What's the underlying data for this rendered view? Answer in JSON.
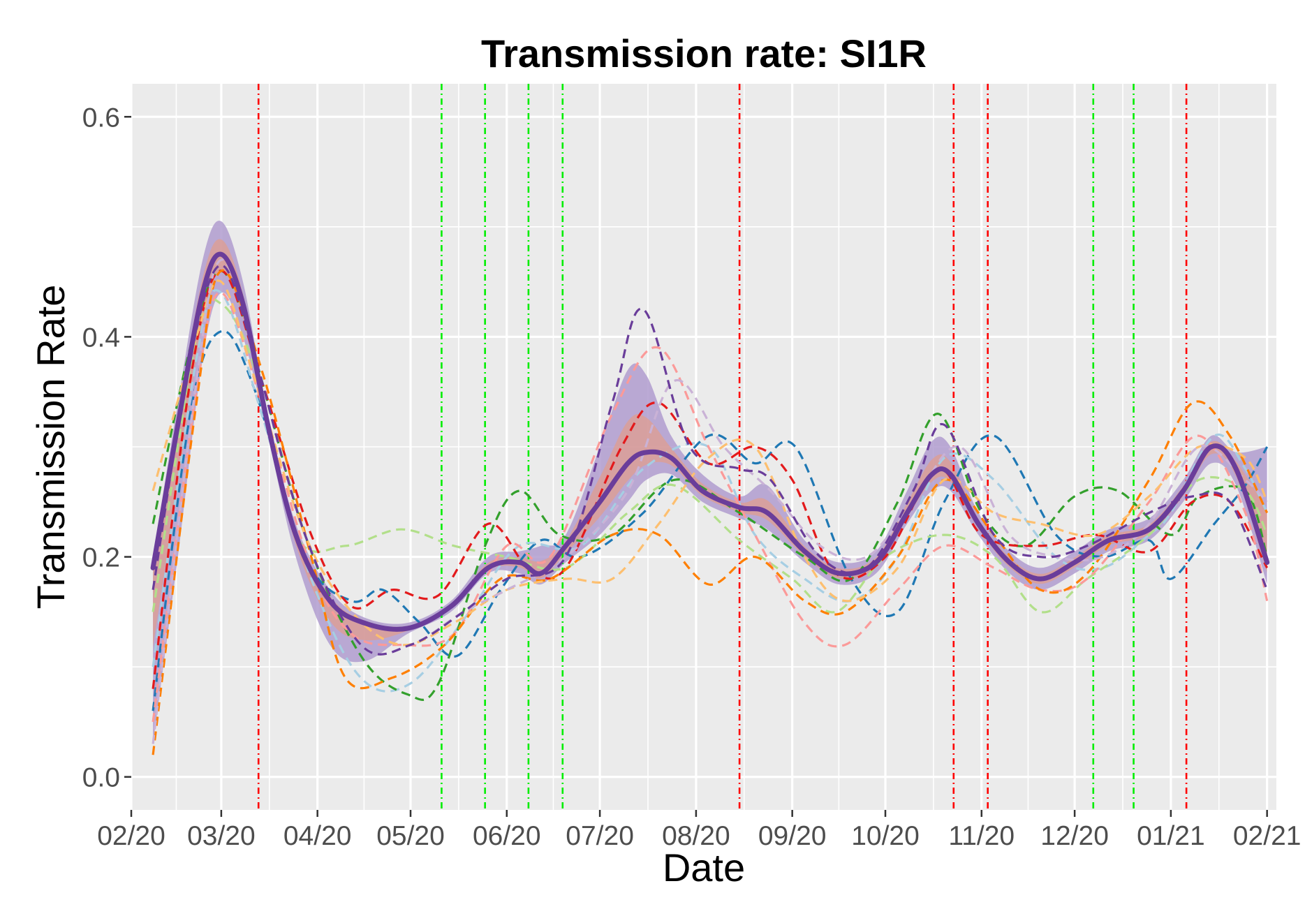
{
  "chart_data": {
    "type": "line",
    "title": "Transmission rate: SI1R",
    "xlabel": "Date",
    "ylabel": "Transmission Rate",
    "x_axis": {
      "type": "date",
      "range": [
        "2020-02-01",
        "2021-02-04"
      ],
      "ticks": [
        {
          "date": "2020-02-01",
          "label": "02/20"
        },
        {
          "date": "2020-03-01",
          "label": "03/20"
        },
        {
          "date": "2020-04-01",
          "label": "04/20"
        },
        {
          "date": "2020-05-01",
          "label": "05/20"
        },
        {
          "date": "2020-06-01",
          "label": "06/20"
        },
        {
          "date": "2020-07-01",
          "label": "07/20"
        },
        {
          "date": "2020-08-01",
          "label": "08/20"
        },
        {
          "date": "2020-09-01",
          "label": "09/20"
        },
        {
          "date": "2020-10-01",
          "label": "10/20"
        },
        {
          "date": "2020-11-01",
          "label": "11/20"
        },
        {
          "date": "2020-12-01",
          "label": "12/20"
        },
        {
          "date": "2021-01-01",
          "label": "01/21"
        },
        {
          "date": "2021-02-01",
          "label": "02/21"
        }
      ]
    },
    "y_axis": {
      "range": [
        -0.03,
        0.63
      ],
      "ticks": [
        {
          "value": 0.0,
          "label": "0.0"
        },
        {
          "value": 0.2,
          "label": "0.2"
        },
        {
          "value": 0.4,
          "label": "0.4"
        },
        {
          "value": 0.6,
          "label": "0.6"
        }
      ]
    },
    "grid": true,
    "legend": "none",
    "background": "#ebebeb",
    "vertical_lines": [
      {
        "date": "2020-03-13",
        "color": "#ff0000"
      },
      {
        "date": "2020-05-11",
        "color": "#00ee00"
      },
      {
        "date": "2020-05-25",
        "color": "#00ee00"
      },
      {
        "date": "2020-06-08",
        "color": "#00ee00"
      },
      {
        "date": "2020-06-19",
        "color": "#00ee00"
      },
      {
        "date": "2020-08-15",
        "color": "#ff0000"
      },
      {
        "date": "2020-10-23",
        "color": "#ff0000"
      },
      {
        "date": "2020-11-03",
        "color": "#ff0000"
      },
      {
        "date": "2020-12-07",
        "color": "#00ee00"
      },
      {
        "date": "2020-12-20",
        "color": "#00ee00"
      },
      {
        "date": "2021-01-06",
        "color": "#ff0000"
      }
    ],
    "mean_series": {
      "color": "#6a3d9a",
      "band_color": "#b09ccf",
      "secondary_band_color": "#ee9977",
      "points": [
        {
          "x": "2020-02-08",
          "y": 0.19,
          "lo": 0.03,
          "hi": 0.2
        },
        {
          "x": "2020-02-16",
          "y": 0.32,
          "lo": 0.2,
          "hi": 0.34
        },
        {
          "x": "2020-02-24",
          "y": 0.44,
          "lo": 0.38,
          "hi": 0.47
        },
        {
          "x": "2020-03-01",
          "y": 0.475,
          "lo": 0.44,
          "hi": 0.505
        },
        {
          "x": "2020-03-08",
          "y": 0.43,
          "lo": 0.4,
          "hi": 0.45
        },
        {
          "x": "2020-03-16",
          "y": 0.32,
          "lo": 0.31,
          "hi": 0.33
        },
        {
          "x": "2020-03-25",
          "y": 0.22,
          "lo": 0.2,
          "hi": 0.23
        },
        {
          "x": "2020-04-05",
          "y": 0.16,
          "lo": 0.12,
          "hi": 0.17
        },
        {
          "x": "2020-04-16",
          "y": 0.14,
          "lo": 0.105,
          "hi": 0.145
        },
        {
          "x": "2020-04-30",
          "y": 0.135,
          "lo": 0.13,
          "hi": 0.14
        },
        {
          "x": "2020-05-14",
          "y": 0.155,
          "lo": 0.15,
          "hi": 0.16
        },
        {
          "x": "2020-05-26",
          "y": 0.19,
          "lo": 0.185,
          "hi": 0.2
        },
        {
          "x": "2020-06-05",
          "y": 0.195,
          "lo": 0.185,
          "hi": 0.205
        },
        {
          "x": "2020-06-12",
          "y": 0.185,
          "lo": 0.175,
          "hi": 0.21
        },
        {
          "x": "2020-06-20",
          "y": 0.21,
          "lo": 0.195,
          "hi": 0.22
        },
        {
          "x": "2020-07-01",
          "y": 0.25,
          "lo": 0.22,
          "hi": 0.3
        },
        {
          "x": "2020-07-10",
          "y": 0.285,
          "lo": 0.25,
          "hi": 0.37
        },
        {
          "x": "2020-07-16",
          "y": 0.295,
          "lo": 0.27,
          "hi": 0.365
        },
        {
          "x": "2020-07-24",
          "y": 0.29,
          "lo": 0.275,
          "hi": 0.31
        },
        {
          "x": "2020-08-03",
          "y": 0.26,
          "lo": 0.25,
          "hi": 0.275
        },
        {
          "x": "2020-08-15",
          "y": 0.245,
          "lo": 0.235,
          "hi": 0.255
        },
        {
          "x": "2020-08-24",
          "y": 0.24,
          "lo": 0.225,
          "hi": 0.265
        },
        {
          "x": "2020-09-05",
          "y": 0.205,
          "lo": 0.195,
          "hi": 0.215
        },
        {
          "x": "2020-09-16",
          "y": 0.185,
          "lo": 0.175,
          "hi": 0.195
        },
        {
          "x": "2020-09-28",
          "y": 0.195,
          "lo": 0.185,
          "hi": 0.205
        },
        {
          "x": "2020-10-08",
          "y": 0.24,
          "lo": 0.23,
          "hi": 0.26
        },
        {
          "x": "2020-10-16",
          "y": 0.275,
          "lo": 0.26,
          "hi": 0.305
        },
        {
          "x": "2020-10-22",
          "y": 0.275,
          "lo": 0.26,
          "hi": 0.3
        },
        {
          "x": "2020-10-31",
          "y": 0.23,
          "lo": 0.22,
          "hi": 0.24
        },
        {
          "x": "2020-11-10",
          "y": 0.195,
          "lo": 0.185,
          "hi": 0.205
        },
        {
          "x": "2020-11-20",
          "y": 0.18,
          "lo": 0.17,
          "hi": 0.19
        },
        {
          "x": "2020-12-01",
          "y": 0.195,
          "lo": 0.185,
          "hi": 0.205
        },
        {
          "x": "2020-12-12",
          "y": 0.215,
          "lo": 0.205,
          "hi": 0.225
        },
        {
          "x": "2020-12-25",
          "y": 0.225,
          "lo": 0.215,
          "hi": 0.235
        },
        {
          "x": "2021-01-05",
          "y": 0.26,
          "lo": 0.25,
          "hi": 0.27
        },
        {
          "x": "2021-01-14",
          "y": 0.3,
          "lo": 0.285,
          "hi": 0.31
        },
        {
          "x": "2021-01-22",
          "y": 0.28,
          "lo": 0.265,
          "hi": 0.295
        },
        {
          "x": "2021-02-01",
          "y": 0.195,
          "lo": 0.175,
          "hi": 0.3
        }
      ]
    },
    "series": [
      {
        "color": "#1f78b4",
        "x": [
          "2020-02-08",
          "2020-02-20",
          "2020-03-01",
          "2020-03-12",
          "2020-03-28",
          "2020-04-12",
          "2020-04-22",
          "2020-05-04",
          "2020-05-16",
          "2020-05-30",
          "2020-06-12",
          "2020-06-25",
          "2020-07-15",
          "2020-08-05",
          "2020-08-20",
          "2020-09-02",
          "2020-09-20",
          "2020-10-05",
          "2020-10-20",
          "2020-11-05",
          "2020-11-25",
          "2020-12-10",
          "2020-12-25",
          "2021-01-01",
          "2021-01-15",
          "2021-01-25",
          "2021-02-01"
        ],
        "y": [
          0.06,
          0.33,
          0.405,
          0.35,
          0.2,
          0.16,
          0.17,
          0.14,
          0.11,
          0.17,
          0.215,
          0.2,
          0.24,
          0.31,
          0.285,
          0.3,
          0.18,
          0.15,
          0.25,
          0.31,
          0.22,
          0.2,
          0.215,
          0.18,
          0.23,
          0.265,
          0.3
        ]
      },
      {
        "color": "#a6cee3",
        "x": [
          "2020-02-08",
          "2020-02-22",
          "2020-03-01",
          "2020-03-14",
          "2020-03-30",
          "2020-04-15",
          "2020-05-01",
          "2020-05-20",
          "2020-06-05",
          "2020-06-25",
          "2020-07-15",
          "2020-08-05",
          "2020-08-20",
          "2020-09-05",
          "2020-09-20",
          "2020-10-05",
          "2020-10-20",
          "2020-11-05",
          "2020-11-25",
          "2020-12-10",
          "2020-12-25",
          "2021-01-01",
          "2021-01-15",
          "2021-01-25",
          "2021-02-01"
        ],
        "y": [
          0.1,
          0.38,
          0.44,
          0.33,
          0.18,
          0.09,
          0.085,
          0.15,
          0.21,
          0.21,
          0.28,
          0.3,
          0.22,
          0.18,
          0.16,
          0.2,
          0.29,
          0.27,
          0.2,
          0.19,
          0.22,
          0.24,
          0.31,
          0.28,
          0.24
        ]
      },
      {
        "color": "#33a02c",
        "x": [
          "2020-02-08",
          "2020-02-20",
          "2020-03-01",
          "2020-03-12",
          "2020-03-28",
          "2020-04-15",
          "2020-04-30",
          "2020-05-10",
          "2020-05-25",
          "2020-06-05",
          "2020-06-18",
          "2020-07-05",
          "2020-07-25",
          "2020-08-15",
          "2020-09-05",
          "2020-09-20",
          "2020-10-05",
          "2020-10-18",
          "2020-11-01",
          "2020-11-15",
          "2020-12-01",
          "2020-12-15",
          "2021-01-01",
          "2021-01-10",
          "2021-01-25",
          "2021-02-01"
        ],
        "y": [
          0.23,
          0.39,
          0.46,
          0.38,
          0.22,
          0.11,
          0.075,
          0.085,
          0.21,
          0.26,
          0.22,
          0.22,
          0.27,
          0.24,
          0.2,
          0.18,
          0.25,
          0.33,
          0.24,
          0.21,
          0.255,
          0.26,
          0.22,
          0.255,
          0.26,
          0.2
        ]
      },
      {
        "color": "#b2df8a",
        "x": [
          "2020-02-08",
          "2020-02-22",
          "2020-03-01",
          "2020-03-12",
          "2020-03-25",
          "2020-04-10",
          "2020-04-28",
          "2020-05-15",
          "2020-06-01",
          "2020-06-20",
          "2020-07-10",
          "2020-07-25",
          "2020-08-15",
          "2020-09-01",
          "2020-09-15",
          "2020-10-01",
          "2020-10-20",
          "2020-11-05",
          "2020-11-20",
          "2020-12-05",
          "2020-12-25",
          "2021-01-10",
          "2021-01-25",
          "2021-02-01"
        ],
        "y": [
          0.15,
          0.4,
          0.43,
          0.37,
          0.22,
          0.21,
          0.225,
          0.21,
          0.2,
          0.19,
          0.24,
          0.265,
          0.215,
          0.18,
          0.15,
          0.2,
          0.22,
          0.2,
          0.15,
          0.18,
          0.22,
          0.27,
          0.26,
          0.22
        ]
      },
      {
        "color": "#e31a1c",
        "x": [
          "2020-02-08",
          "2020-02-20",
          "2020-03-01",
          "2020-03-14",
          "2020-03-30",
          "2020-04-12",
          "2020-04-25",
          "2020-05-10",
          "2020-05-26",
          "2020-06-08",
          "2020-06-20",
          "2020-07-08",
          "2020-07-20",
          "2020-08-05",
          "2020-08-20",
          "2020-09-01",
          "2020-09-15",
          "2020-10-01",
          "2020-10-18",
          "2020-11-01",
          "2020-11-20",
          "2020-12-08",
          "2020-12-25",
          "2021-01-08",
          "2021-01-20",
          "2021-02-01"
        ],
        "y": [
          0.08,
          0.36,
          0.46,
          0.36,
          0.22,
          0.155,
          0.17,
          0.165,
          0.23,
          0.19,
          0.19,
          0.3,
          0.34,
          0.285,
          0.3,
          0.27,
          0.185,
          0.2,
          0.28,
          0.22,
          0.21,
          0.22,
          0.205,
          0.25,
          0.25,
          0.19
        ]
      },
      {
        "color": "#fb9a99",
        "x": [
          "2020-02-08",
          "2020-02-22",
          "2020-03-01",
          "2020-03-14",
          "2020-03-30",
          "2020-04-12",
          "2020-04-28",
          "2020-05-15",
          "2020-06-01",
          "2020-06-15",
          "2020-07-05",
          "2020-07-20",
          "2020-08-05",
          "2020-08-20",
          "2020-09-05",
          "2020-09-18",
          "2020-10-05",
          "2020-10-20",
          "2020-11-05",
          "2020-11-20",
          "2020-12-05",
          "2020-12-25",
          "2021-01-10",
          "2021-01-25",
          "2021-02-01"
        ],
        "y": [
          0.05,
          0.35,
          0.44,
          0.34,
          0.19,
          0.13,
          0.12,
          0.13,
          0.21,
          0.2,
          0.33,
          0.39,
          0.3,
          0.22,
          0.14,
          0.12,
          0.17,
          0.21,
          0.19,
          0.17,
          0.18,
          0.25,
          0.31,
          0.24,
          0.16
        ]
      },
      {
        "color": "#ff7f00",
        "x": [
          "2020-02-08",
          "2020-02-22",
          "2020-03-01",
          "2020-03-14",
          "2020-03-30",
          "2020-04-10",
          "2020-04-25",
          "2020-05-12",
          "2020-05-30",
          "2020-06-15",
          "2020-07-05",
          "2020-07-20",
          "2020-08-05",
          "2020-08-20",
          "2020-09-05",
          "2020-09-18",
          "2020-10-05",
          "2020-10-20",
          "2020-11-05",
          "2020-11-20",
          "2020-12-05",
          "2020-12-25",
          "2021-01-08",
          "2021-01-20",
          "2021-02-01"
        ],
        "y": [
          0.02,
          0.34,
          0.46,
          0.37,
          0.2,
          0.09,
          0.09,
          0.12,
          0.18,
          0.18,
          0.22,
          0.22,
          0.175,
          0.2,
          0.16,
          0.15,
          0.2,
          0.27,
          0.22,
          0.17,
          0.185,
          0.27,
          0.34,
          0.31,
          0.24
        ]
      },
      {
        "color": "#fdbf6f",
        "x": [
          "2020-02-08",
          "2020-02-22",
          "2020-03-01",
          "2020-03-12",
          "2020-03-28",
          "2020-04-12",
          "2020-04-28",
          "2020-05-15",
          "2020-06-01",
          "2020-06-20",
          "2020-07-05",
          "2020-07-20",
          "2020-08-05",
          "2020-08-20",
          "2020-09-05",
          "2020-09-18",
          "2020-10-05",
          "2020-10-20",
          "2020-11-05",
          "2020-11-20",
          "2020-12-08",
          "2020-12-25",
          "2021-01-10",
          "2021-01-25",
          "2021-02-01"
        ],
        "y": [
          0.26,
          0.4,
          0.45,
          0.36,
          0.22,
          0.15,
          0.12,
          0.14,
          0.17,
          0.18,
          0.18,
          0.23,
          0.29,
          0.3,
          0.2,
          0.16,
          0.19,
          0.27,
          0.24,
          0.23,
          0.22,
          0.255,
          0.3,
          0.29,
          0.25
        ]
      },
      {
        "color": "#cab2d6",
        "x": [
          "2020-02-08",
          "2020-02-22",
          "2020-03-01",
          "2020-03-12",
          "2020-03-28",
          "2020-04-15",
          "2020-05-01",
          "2020-05-18",
          "2020-06-01",
          "2020-06-20",
          "2020-07-10",
          "2020-07-25",
          "2020-08-10",
          "2020-08-25",
          "2020-09-10",
          "2020-09-25",
          "2020-10-10",
          "2020-10-25",
          "2020-11-10",
          "2020-11-25",
          "2020-12-10",
          "2020-12-25",
          "2021-01-10",
          "2021-01-25",
          "2021-02-01"
        ],
        "y": [
          0.03,
          0.36,
          0.47,
          0.38,
          0.22,
          0.12,
          0.12,
          0.15,
          0.17,
          0.2,
          0.26,
          0.36,
          0.3,
          0.26,
          0.21,
          0.2,
          0.25,
          0.3,
          0.22,
          0.2,
          0.2,
          0.23,
          0.3,
          0.27,
          0.25
        ]
      },
      {
        "color": "#6a3d9a",
        "x": [
          "2020-02-08",
          "2020-02-20",
          "2020-03-01",
          "2020-03-12",
          "2020-03-28",
          "2020-04-15",
          "2020-05-01",
          "2020-05-18",
          "2020-06-01",
          "2020-06-20",
          "2020-07-05",
          "2020-07-15",
          "2020-07-30",
          "2020-08-15",
          "2020-08-25",
          "2020-09-10",
          "2020-09-25",
          "2020-10-10",
          "2020-10-20",
          "2020-11-05",
          "2020-11-20",
          "2020-12-05",
          "2020-12-25",
          "2021-01-08",
          "2021-01-20",
          "2021-02-01"
        ],
        "y": [
          0.17,
          0.38,
          0.465,
          0.38,
          0.22,
          0.12,
          0.12,
          0.15,
          0.18,
          0.2,
          0.34,
          0.425,
          0.3,
          0.28,
          0.27,
          0.2,
          0.19,
          0.26,
          0.32,
          0.22,
          0.2,
          0.21,
          0.24,
          0.255,
          0.25,
          0.17
        ]
      }
    ]
  }
}
